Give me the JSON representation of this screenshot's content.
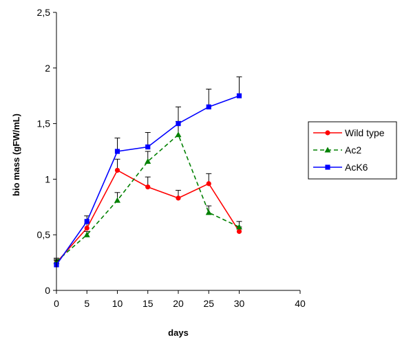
{
  "chart_data": {
    "type": "line",
    "xlabel": "days",
    "ylabel": "bio mass (gFW/mL)",
    "xlim": [
      0,
      40
    ],
    "ylim": [
      0,
      2.5
    ],
    "x_ticks": [
      "0",
      "5",
      "10",
      "15",
      "20",
      "25",
      "30",
      "40"
    ],
    "y_ticks": [
      "0",
      "0,5",
      "1",
      "1,5",
      "2",
      "2,5"
    ],
    "grid": false,
    "legend_position": "right",
    "x": [
      0,
      5,
      10,
      15,
      20,
      25,
      30
    ],
    "series": [
      {
        "name": "Wild type",
        "color": "#ff0000",
        "marker": "circle",
        "line_style": "solid",
        "values": [
          0.25,
          0.56,
          1.08,
          0.93,
          0.83,
          0.96,
          0.53
        ],
        "errors": [
          0.03,
          0.04,
          0.1,
          0.09,
          0.07,
          0.09,
          0.04
        ]
      },
      {
        "name": "Ac2",
        "color": "#008000",
        "marker": "triangle",
        "line_style": "dashed",
        "values": [
          0.26,
          0.5,
          0.81,
          1.16,
          1.4,
          0.7,
          0.57
        ],
        "errors": [
          0.03,
          0.03,
          0.07,
          0.09,
          0.12,
          0.06,
          0.05
        ]
      },
      {
        "name": "AcK6",
        "color": "#0000ff",
        "marker": "square",
        "line_style": "solid",
        "values": [
          0.23,
          0.62,
          1.25,
          1.29,
          1.5,
          1.65,
          1.75
        ],
        "errors": [
          0.04,
          0.05,
          0.12,
          0.13,
          0.15,
          0.16,
          0.17
        ]
      }
    ]
  }
}
